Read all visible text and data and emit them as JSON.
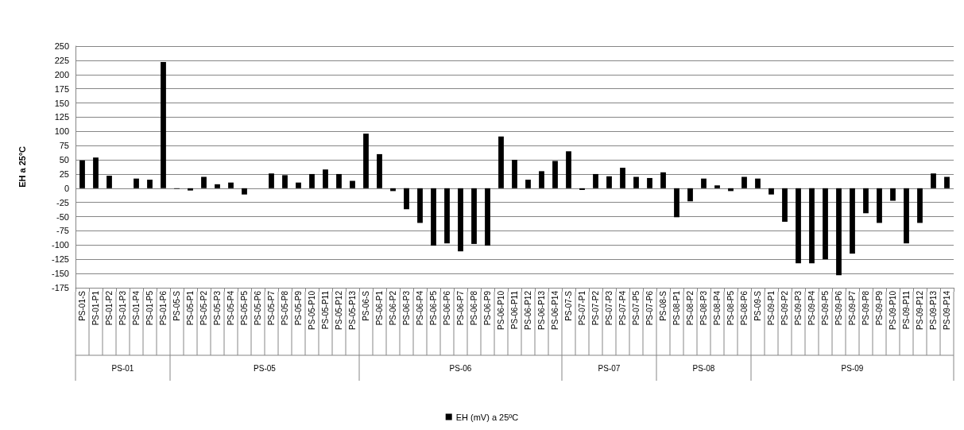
{
  "chart_data": {
    "type": "bar",
    "ylabel": "EH a 25ºC",
    "categories": [
      "PS-01-S",
      "PS-01-P1",
      "PS-01-P2",
      "PS-01-P3",
      "PS-01-P4",
      "PS-01-P5",
      "PS-01-P6",
      "PS-05-S",
      "PS-05-P1",
      "PS-05-P2",
      "PS-05-P3",
      "PS-05-P4",
      "PS-05-P5",
      "PS-05-P6",
      "PS-05-P7",
      "PS-05-P8",
      "PS-05-P9",
      "PS-05-P10",
      "PS-05-P11",
      "PS-05-P12",
      "PS-05-P13",
      "PS-06-S",
      "PS-06-P1",
      "PS-06-P2",
      "PS-06-P3",
      "PS-06-P4",
      "PS-06-P5",
      "PS-06-P6",
      "PS-06-P7",
      "PS-06-P8",
      "PS-06-P9",
      "PS-06-P10",
      "PS-06-P11",
      "PS-06-P12",
      "PS-06-P13",
      "PS-06-P14",
      "PS-07-S",
      "PS-07-P1",
      "PS-07-P2",
      "PS-07-P3",
      "PS-07-P4",
      "PS-07-P5",
      "PS-07-P6",
      "PS-08-S",
      "PS-08-P1",
      "PS-08-P2",
      "PS-08-P3",
      "PS-08-P4",
      "PS-08-P5",
      "PS-08-P6",
      "PS-09-S",
      "PS-09-P1",
      "PS-09-P2",
      "PS-09-P3",
      "PS-09-P4",
      "PS-09-P5",
      "PS-09-P6",
      "PS-09-P7",
      "PS-09-P8",
      "PS-09-P9",
      "PS-09-P10",
      "PS-09-P11",
      "PS-09-P12",
      "PS-09-P13",
      "PS-09-P14"
    ],
    "series": [
      {
        "name": "EH (mV) a 25ºC",
        "color": "#000000",
        "values": [
          49,
          54,
          22,
          null,
          17,
          15,
          222,
          -1,
          -4,
          20,
          7,
          10,
          -11,
          null,
          26,
          23,
          10,
          25,
          33,
          25,
          13,
          96,
          60,
          -5,
          -37,
          -61,
          -101,
          -97,
          -111,
          -98,
          -101,
          91,
          50,
          15,
          30,
          48,
          65,
          -3,
          25,
          21,
          36,
          20,
          18,
          28,
          -51,
          -23,
          17,
          5,
          -5,
          20,
          17,
          -11,
          -59,
          -132,
          -132,
          -125,
          -153,
          -115,
          -44,
          -61,
          -22,
          -97,
          -61,
          26,
          20
        ]
      }
    ],
    "annotations": [
      "PS-01",
      "PS-05",
      "PS-06",
      "PS-07",
      "PS-08",
      "PS-09"
    ],
    "ylim": [
      -175,
      250
    ],
    "yticks": [
      -175,
      -150,
      -125,
      -100,
      -75,
      -50,
      -25,
      0,
      25,
      50,
      75,
      100,
      125,
      150,
      175,
      200,
      225,
      250
    ],
    "grid": "y",
    "legend": "bottom"
  }
}
